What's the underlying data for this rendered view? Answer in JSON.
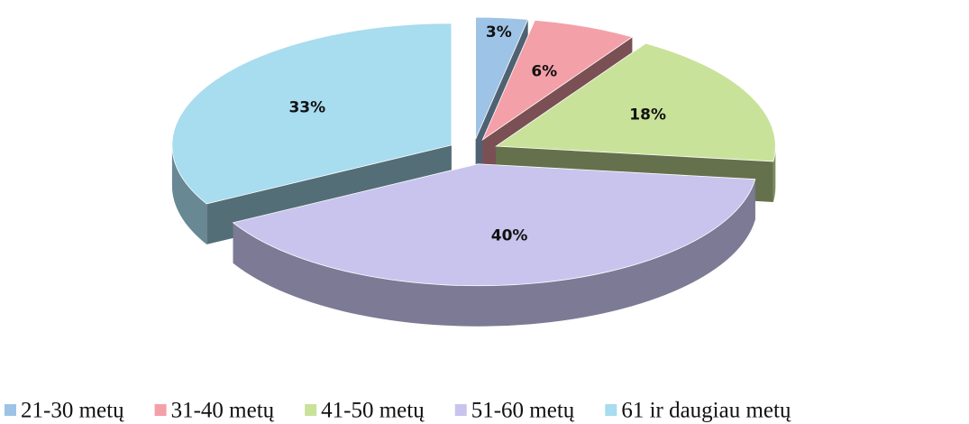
{
  "chart_data": {
    "type": "pie",
    "categories": [
      "21-30 metų",
      "31-40 metų",
      "41-50 metų",
      "51-60 metų",
      "61 ir daugiau metų"
    ],
    "values": [
      3,
      6,
      18,
      40,
      33
    ],
    "value_labels": [
      "3%",
      "6%",
      "18%",
      "40%",
      "33%"
    ],
    "colors": [
      "#9dc3e6",
      "#f4a0a8",
      "#c9e29a",
      "#c8c4ee",
      "#a8dcef"
    ],
    "legend": "bottom"
  }
}
